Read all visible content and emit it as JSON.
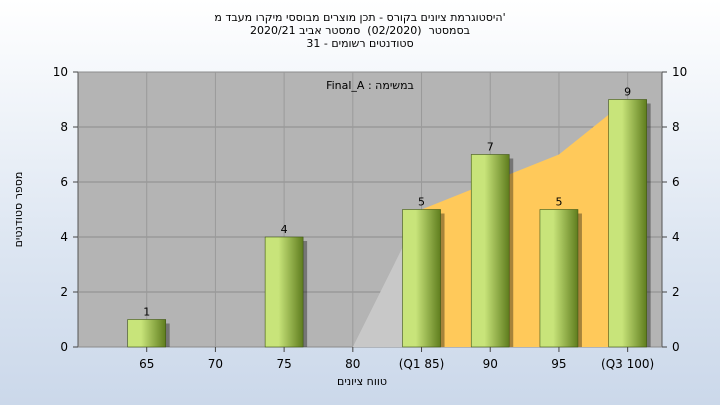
{
  "chart_data": {
    "type": "bar",
    "title_lines": [
      "היסטוגרמת ציונים בקורס - תכן מוצרים מבוססי מיקרו מעבד מ'",
      "בסמסטר  (02/2020)  סמסטר אביב 2020/21",
      "סטודנטים רשומים - 31"
    ],
    "ylabel": "מספר סטודנטים",
    "xlabel": "טווח ציונים",
    "categories": [
      "65",
      "70",
      "75",
      "80",
      "(Q1 85)",
      "90",
      "95",
      "(Q3 100)"
    ],
    "values": [
      1,
      0,
      4,
      0,
      5,
      7,
      5,
      9
    ],
    "value_labels": [
      "1",
      "",
      "4",
      "",
      "5",
      "7",
      "5",
      "9"
    ],
    "ylim": [
      0,
      10
    ],
    "yticks": [
      "0",
      "2",
      "4",
      "6",
      "8",
      "10"
    ],
    "annotation": "Final_A : במשימה",
    "grid": true,
    "area_values": [
      0,
      0,
      0,
      0,
      5,
      6,
      7,
      9
    ],
    "colors": {
      "plot_bg": "#b4b4b4",
      "bar_light": "#c8e47a",
      "bar_dark": "#5f7d1e",
      "area_orange": "#ffc95a",
      "area_gray": "#c8c8c8"
    }
  }
}
